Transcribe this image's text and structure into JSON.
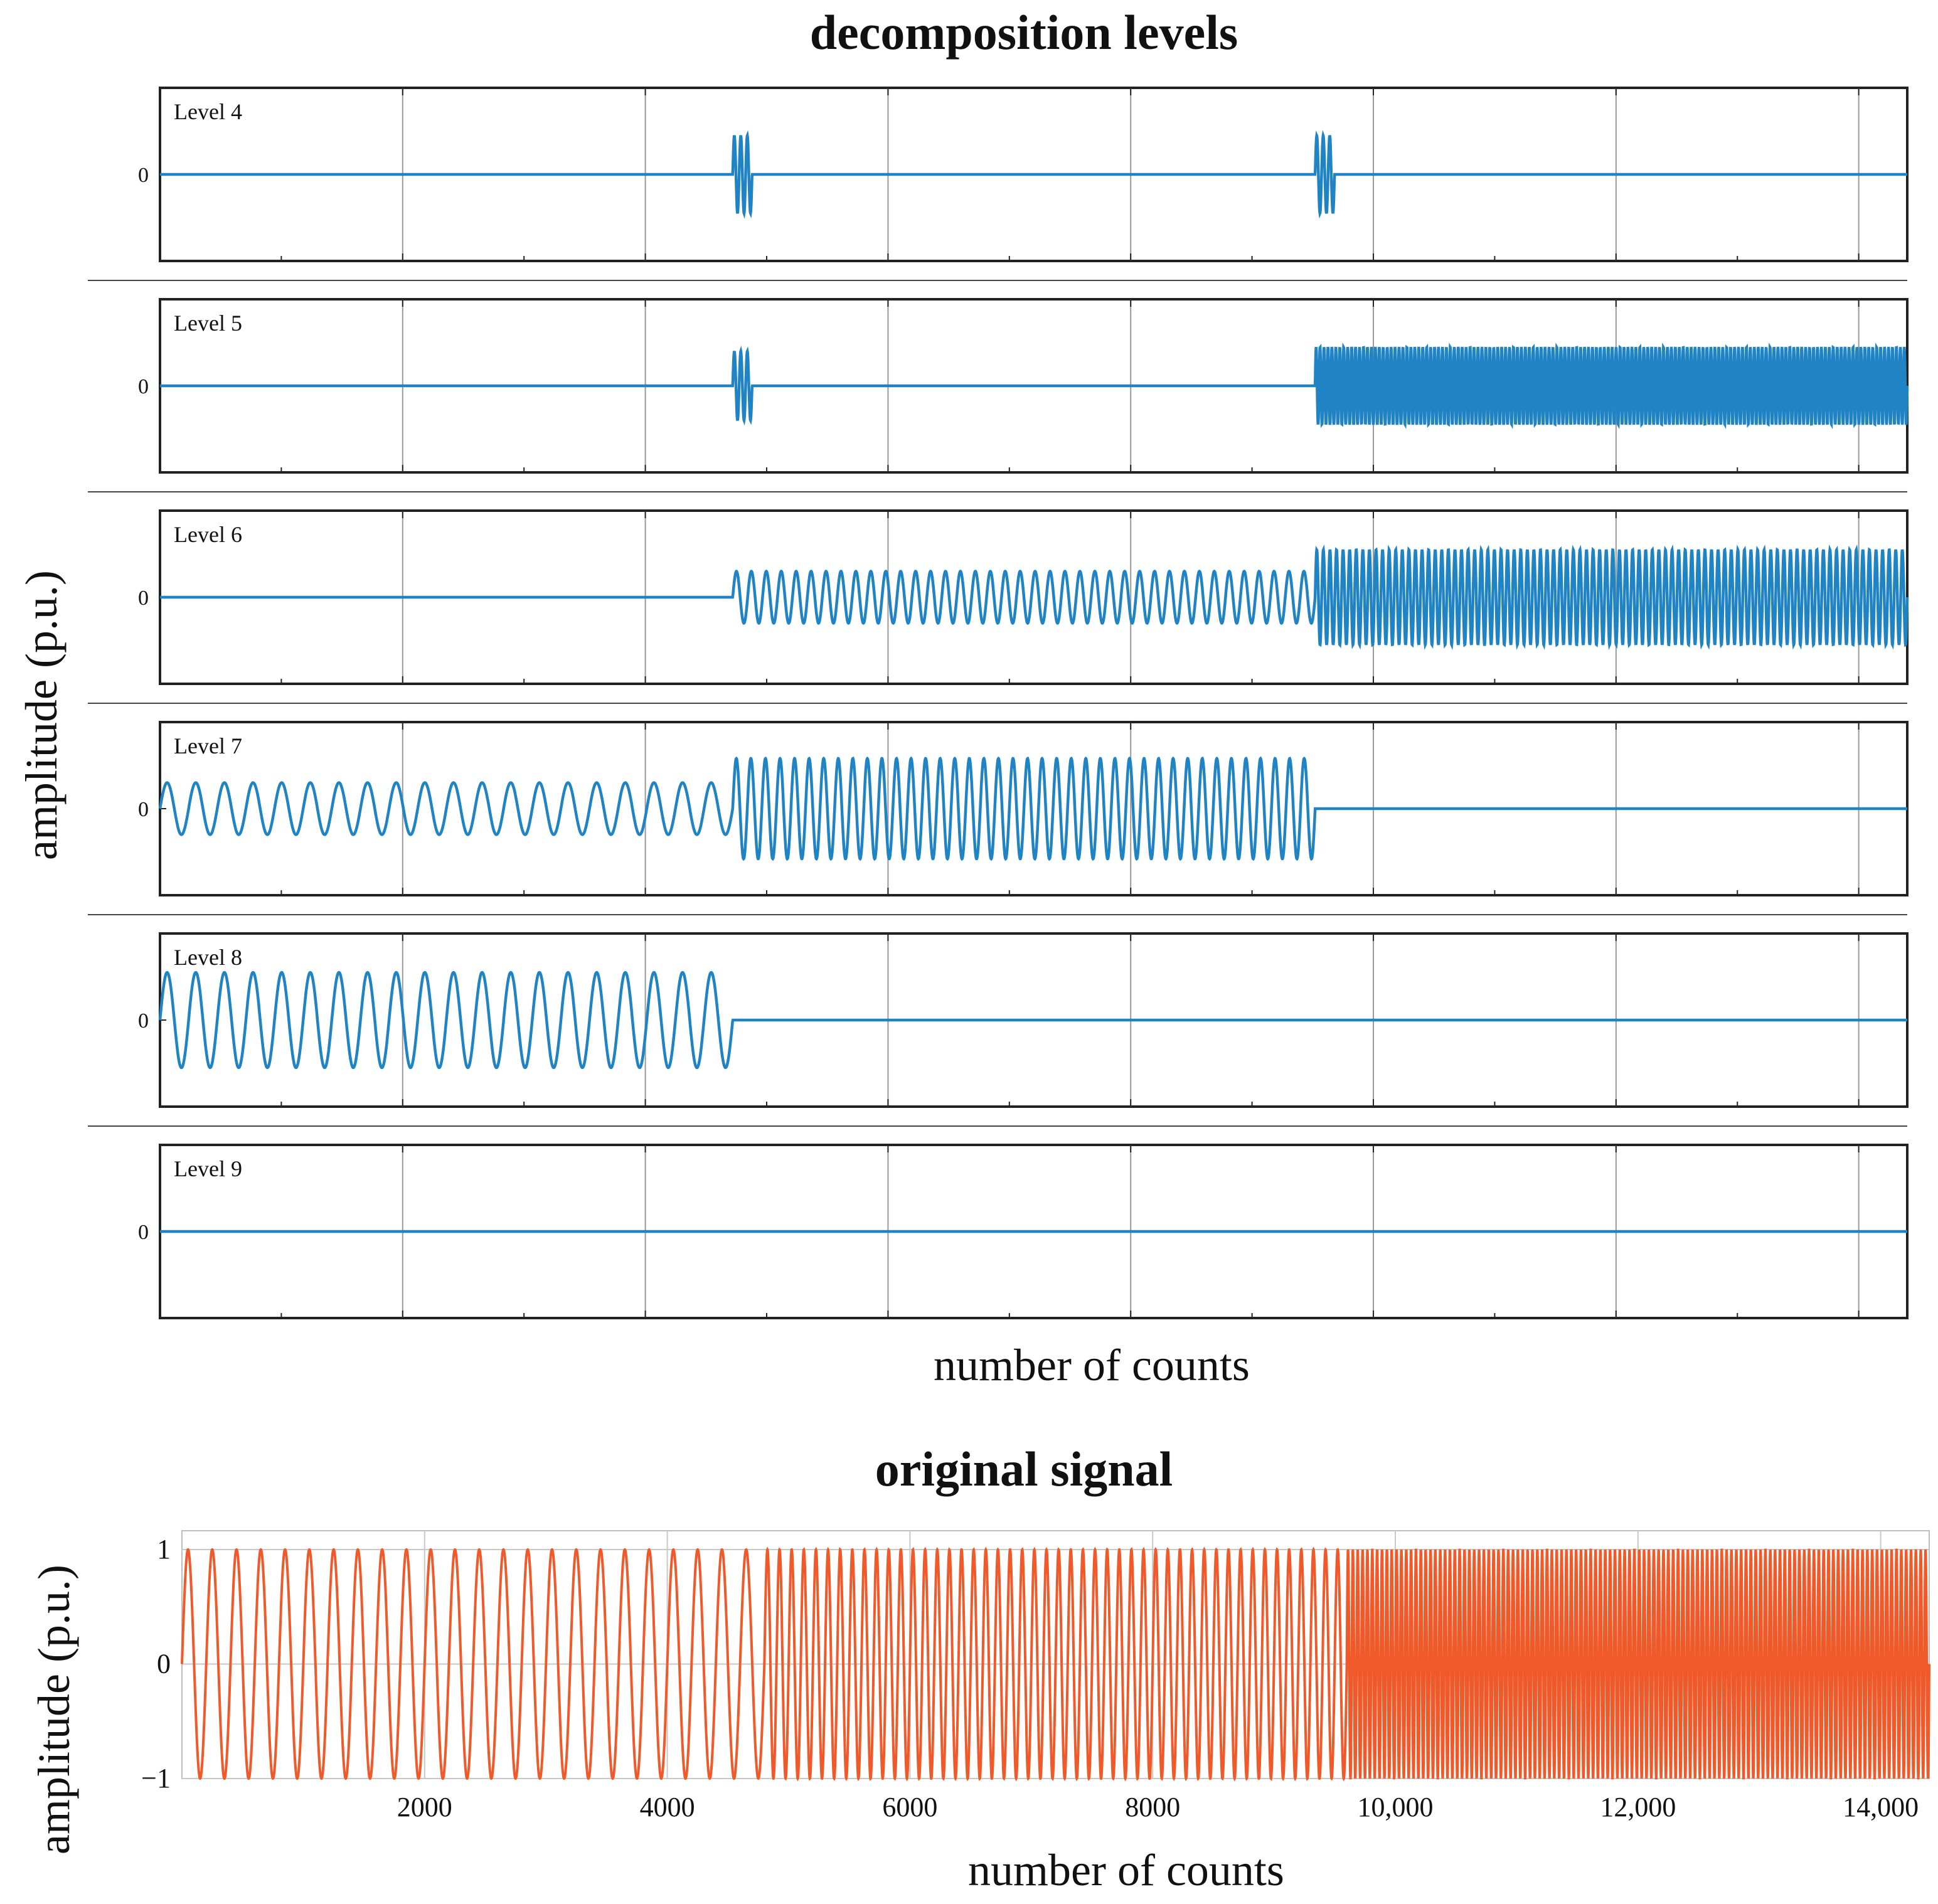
{
  "chart_data": [
    {
      "type": "line",
      "title": "decomposition levels",
      "xlabel": "number of counts",
      "ylabel": "amplitude (p.u.)",
      "xlim": [
        0,
        14400
      ],
      "grid": true,
      "color": "#1f83c4",
      "panels": [
        {
          "label": "Level 4",
          "zero_label": "0",
          "segments": [
            {
              "x0": 0,
              "x1": 14400,
              "amp": 0,
              "cycles": 0
            },
            {
              "x0": 4720,
              "x1": 4880,
              "amp": 0.45,
              "cycles": 3
            },
            {
              "x0": 9520,
              "x1": 9680,
              "amp": 0.45,
              "cycles": 3
            }
          ]
        },
        {
          "label": "Level 5",
          "zero_label": "0",
          "segments": [
            {
              "x0": 0,
              "x1": 4720,
              "amp": 0,
              "cycles": 0
            },
            {
              "x0": 4720,
              "x1": 4880,
              "amp": 0.4,
              "cycles": 3
            },
            {
              "x0": 4880,
              "x1": 9520,
              "amp": 0,
              "cycles": 0
            },
            {
              "x0": 9520,
              "x1": 14400,
              "amp": 0.45,
              "cycles": 150
            }
          ]
        },
        {
          "label": "Level 6",
          "zero_label": "0",
          "segments": [
            {
              "x0": 0,
              "x1": 4720,
              "amp": 0,
              "cycles": 0
            },
            {
              "x0": 4720,
              "x1": 9520,
              "amp": 0.3,
              "cycles": 39
            },
            {
              "x0": 9520,
              "x1": 14400,
              "amp": 0.55,
              "cycles": 90
            }
          ]
        },
        {
          "label": "Level 7",
          "zero_label": "0",
          "segments": [
            {
              "x0": 0,
              "x1": 4720,
              "amp": 0.3,
              "cycles": 20
            },
            {
              "x0": 4720,
              "x1": 9520,
              "amp": 0.58,
              "cycles": 40
            },
            {
              "x0": 9520,
              "x1": 14400,
              "amp": 0,
              "cycles": 0
            }
          ]
        },
        {
          "label": "Level 8",
          "zero_label": "0",
          "segments": [
            {
              "x0": 0,
              "x1": 4720,
              "amp": 0.55,
              "cycles": 20
            },
            {
              "x0": 4720,
              "x1": 14400,
              "amp": 0,
              "cycles": 0
            }
          ]
        },
        {
          "label": "Level 9",
          "zero_label": "0",
          "segments": [
            {
              "x0": 0,
              "x1": 14400,
              "amp": 0,
              "cycles": 0
            }
          ]
        }
      ]
    },
    {
      "type": "line",
      "title": "original signal",
      "xlabel": "number of counts",
      "ylabel": "amplitude (p.u.)",
      "xlim": [
        0,
        14400
      ],
      "ylim": [
        -1,
        1
      ],
      "yticks": [
        1,
        0,
        -1
      ],
      "ytick_labels": [
        "1",
        "0",
        "−1"
      ],
      "xticks": [
        2000,
        4000,
        6000,
        8000,
        10000,
        12000,
        14000
      ],
      "xtick_labels": [
        "2000",
        "4000",
        "6000",
        "8000",
        "10,000",
        "12,000",
        "14,000"
      ],
      "color": "#f05a2a",
      "segments": [
        {
          "x0": 0,
          "x1": 4800,
          "amp": 1,
          "cycles": 24
        },
        {
          "x0": 4800,
          "x1": 9600,
          "amp": 1,
          "cycles": 48
        },
        {
          "x0": 9600,
          "x1": 14400,
          "amp": 1,
          "cycles": 120
        }
      ]
    }
  ]
}
